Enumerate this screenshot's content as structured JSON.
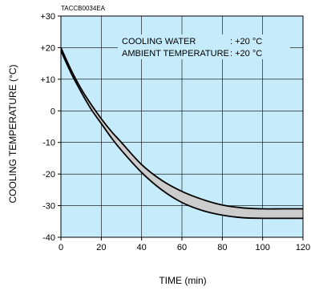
{
  "figure_code": "TACCB0034EA",
  "chart_data": {
    "type": "area",
    "xlabel": "TIME (min)",
    "ylabel": "COOLING TEMPERATURE (°C)",
    "xlim": [
      0,
      120
    ],
    "ylim": [
      -40,
      30
    ],
    "xticks": [
      0,
      20,
      40,
      60,
      80,
      100,
      120
    ],
    "xtick_labels": [
      "0",
      "20",
      "40",
      "60",
      "80",
      "100",
      "120"
    ],
    "yticks": [
      30,
      20,
      10,
      0,
      -10,
      -20,
      -30,
      -40
    ],
    "ytick_labels": [
      "+30",
      "+20",
      "+10",
      "0",
      "-10",
      "-20",
      "-30",
      "-40"
    ],
    "grid": true,
    "annotations": [
      {
        "label": "COOLING WATER",
        "value": ": +20 °C"
      },
      {
        "label": "AMBIENT TEMPERATURE",
        "value": ": +20 °C"
      }
    ],
    "series": [
      {
        "x": [
          0,
          5,
          10,
          15,
          20,
          25,
          30,
          40,
          50,
          60,
          70,
          80,
          90,
          100,
          110,
          120
        ],
        "values": [
          20,
          13,
          7,
          2,
          -2.5,
          -6.5,
          -10,
          -17,
          -22,
          -25.5,
          -28,
          -29.8,
          -30.7,
          -31,
          -31,
          -31
        ]
      },
      {
        "x": [
          0,
          5,
          10,
          15,
          20,
          25,
          30,
          40,
          50,
          60,
          70,
          80,
          90,
          100,
          110,
          120
        ],
        "values": [
          19,
          12,
          6,
          0.5,
          -4,
          -8.5,
          -12.5,
          -19.5,
          -25,
          -29,
          -31.5,
          -33,
          -33.8,
          -34,
          -34,
          -34
        ]
      }
    ],
    "colors": {
      "plot_background": "#c6ebfa",
      "band_fill": "#cccccc",
      "line": "#000000",
      "grid": "#000000"
    }
  }
}
